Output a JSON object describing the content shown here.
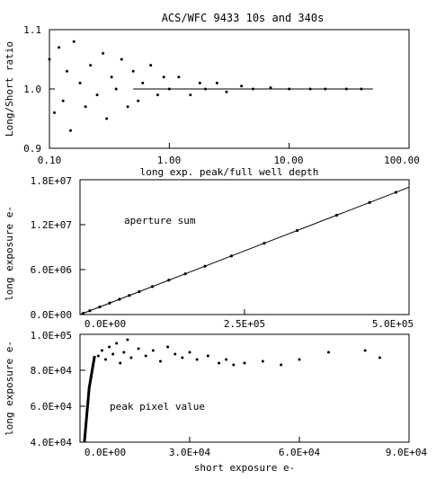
{
  "figure_title": "ACS/WFC 9433 10s and 340s",
  "chart_data": [
    {
      "type": "scatter",
      "name": "panel-ratio",
      "title": "ACS/WFC 9433 10s and 340s",
      "xlabel": "long exp. peak/full well depth",
      "ylabel": "Long/Short ratio",
      "xscale": "log",
      "xlim": [
        0.1,
        100.0
      ],
      "ylim": [
        0.9,
        1.1
      ],
      "xticks": [
        0.1,
        1.0,
        10.0,
        100.0
      ],
      "xtick_labels": [
        "0.10",
        "1.00",
        "10.00",
        "100.00"
      ],
      "yticks": [
        0.9,
        1.0,
        1.1
      ],
      "ytick_labels": [
        "0.9",
        "1.0",
        "1.1"
      ],
      "reference_line": {
        "y": 1.0,
        "x_from": 0.5,
        "x_to": 50.0
      },
      "points": [
        [
          0.1,
          1.05
        ],
        [
          0.11,
          0.96
        ],
        [
          0.12,
          1.07
        ],
        [
          0.13,
          0.98
        ],
        [
          0.14,
          1.03
        ],
        [
          0.15,
          0.93
        ],
        [
          0.16,
          1.08
        ],
        [
          0.18,
          1.01
        ],
        [
          0.2,
          0.97
        ],
        [
          0.22,
          1.04
        ],
        [
          0.25,
          0.99
        ],
        [
          0.28,
          1.06
        ],
        [
          0.3,
          0.95
        ],
        [
          0.33,
          1.02
        ],
        [
          0.36,
          1.0
        ],
        [
          0.4,
          1.05
        ],
        [
          0.45,
          0.97
        ],
        [
          0.5,
          1.03
        ],
        [
          0.55,
          0.98
        ],
        [
          0.6,
          1.01
        ],
        [
          0.7,
          1.04
        ],
        [
          0.8,
          0.99
        ],
        [
          0.9,
          1.02
        ],
        [
          1.0,
          1.0
        ],
        [
          1.2,
          1.02
        ],
        [
          1.5,
          0.99
        ],
        [
          1.8,
          1.01
        ],
        [
          2.0,
          1.0
        ],
        [
          2.5,
          1.01
        ],
        [
          3.0,
          0.995
        ],
        [
          4.0,
          1.005
        ],
        [
          5.0,
          1.0
        ],
        [
          7.0,
          1.002
        ],
        [
          10.0,
          1.0
        ],
        [
          15.0,
          1.0
        ],
        [
          20.0,
          1.0
        ],
        [
          30.0,
          1.0
        ],
        [
          40.0,
          1.0
        ]
      ]
    },
    {
      "type": "line",
      "name": "panel-aperture",
      "xlabel": "",
      "ylabel": "long exposure e-",
      "annotation": "aperture sum",
      "xlim": [
        0,
        500000
      ],
      "ylim": [
        0,
        18000000
      ],
      "xticks": [
        0,
        250000,
        500000
      ],
      "xtick_labels": [
        "0.0E+00",
        "2.5E+05",
        "5.0E+05"
      ],
      "yticks": [
        0,
        6000000,
        12000000,
        18000000
      ],
      "ytick_labels": [
        "0.0E+00",
        "6.0E+06",
        "1.2E+07",
        "1.8E+07"
      ],
      "line": [
        [
          0,
          0
        ],
        [
          500000,
          17000000
        ]
      ],
      "points": [
        [
          5000,
          170000
        ],
        [
          15000,
          510000
        ],
        [
          30000,
          1020000
        ],
        [
          45000,
          1530000
        ],
        [
          60000,
          2040000
        ],
        [
          75000,
          2550000
        ],
        [
          90000,
          3060000
        ],
        [
          110000,
          3740000
        ],
        [
          135000,
          4590000
        ],
        [
          160000,
          5440000
        ],
        [
          190000,
          6460000
        ],
        [
          230000,
          7820000
        ],
        [
          280000,
          9520000
        ],
        [
          330000,
          11220000
        ],
        [
          390000,
          13260000
        ],
        [
          440000,
          14960000
        ],
        [
          480000,
          16320000
        ]
      ]
    },
    {
      "type": "scatter",
      "name": "panel-peak",
      "xlabel": "short exposure e-",
      "ylabel": "long exposure e-",
      "annotation": "peak pixel value",
      "xlim": [
        0,
        90000
      ],
      "ylim": [
        40000,
        100000
      ],
      "xticks": [
        0,
        30000,
        60000,
        90000
      ],
      "xtick_labels": [
        "0.0E+00",
        "3.0E+04",
        "6.0E+04",
        "9.0E+04"
      ],
      "yticks": [
        40000,
        60000,
        80000,
        100000
      ],
      "ytick_labels": [
        "4.0E+04",
        "6.0E+04",
        "8.0E+04",
        "1.0E+05"
      ],
      "steep_branch": [
        [
          1200,
          40000
        ],
        [
          2500,
          70000
        ],
        [
          4000,
          88000
        ]
      ],
      "points": [
        [
          5000,
          88000
        ],
        [
          6000,
          91000
        ],
        [
          7000,
          86000
        ],
        [
          8000,
          93000
        ],
        [
          9000,
          89000
        ],
        [
          10000,
          95000
        ],
        [
          11000,
          84000
        ],
        [
          12000,
          90000
        ],
        [
          13000,
          97000
        ],
        [
          14000,
          87000
        ],
        [
          16000,
          92000
        ],
        [
          18000,
          88000
        ],
        [
          20000,
          91000
        ],
        [
          22000,
          85000
        ],
        [
          24000,
          93000
        ],
        [
          26000,
          89000
        ],
        [
          28000,
          87000
        ],
        [
          30000,
          90000
        ],
        [
          32000,
          86000
        ],
        [
          35000,
          88000
        ],
        [
          38000,
          84000
        ],
        [
          40000,
          86000
        ],
        [
          42000,
          83000
        ],
        [
          45000,
          84000
        ],
        [
          50000,
          85000
        ],
        [
          55000,
          83000
        ],
        [
          60000,
          86000
        ],
        [
          68000,
          90000
        ],
        [
          78000,
          91000
        ],
        [
          82000,
          87000
        ]
      ]
    }
  ]
}
